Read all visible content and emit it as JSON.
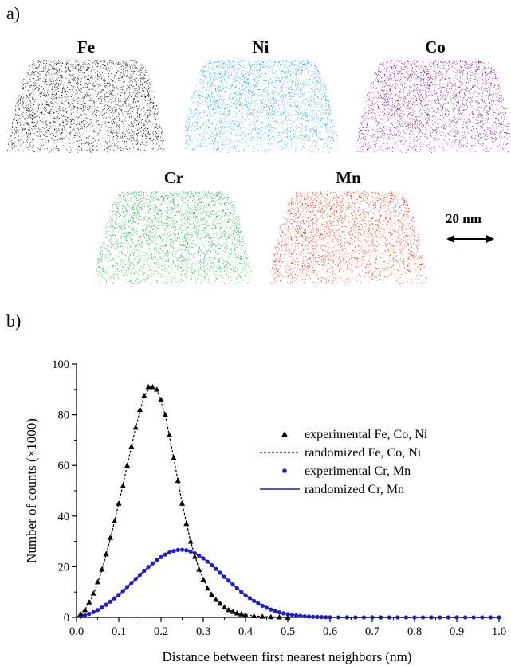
{
  "panel_a": {
    "label": "a)",
    "elements": [
      {
        "name": "Fe",
        "color": "#111111"
      },
      {
        "name": "Ni",
        "color": "#29a8e0"
      },
      {
        "name": "Co",
        "color": "#8e1a8e"
      },
      {
        "name": "Cr",
        "color": "#1fb14a"
      },
      {
        "name": "Mn",
        "color": "#e8401c"
      }
    ],
    "scale_bar": {
      "label": "20 nm"
    }
  },
  "panel_b": {
    "label": "b)"
  },
  "chart_data": {
    "type": "scatter",
    "xlabel": "Distance between first nearest neighbors (nm)",
    "ylabel": "Number of counts (×1000)",
    "xlim": [
      0,
      1.0
    ],
    "ylim": [
      0,
      100
    ],
    "xticks": [
      "0.0",
      "0.1",
      "0.2",
      "0.3",
      "0.4",
      "0.5",
      "0.6",
      "0.7",
      "0.8",
      "0.9",
      "1.0"
    ],
    "yticks": [
      "0",
      "20",
      "40",
      "60",
      "80",
      "100"
    ],
    "grid": false,
    "legend_position": "right",
    "series": [
      {
        "name": "experimental Fe, Co, Ni",
        "style": "triangle-markers",
        "color": "#000000",
        "points": [
          [
            0.01,
            1.5
          ],
          [
            0.02,
            3
          ],
          [
            0.03,
            6
          ],
          [
            0.04,
            9.5
          ],
          [
            0.05,
            14
          ],
          [
            0.06,
            19
          ],
          [
            0.07,
            25
          ],
          [
            0.08,
            31.5
          ],
          [
            0.09,
            38
          ],
          [
            0.1,
            45
          ],
          [
            0.11,
            52
          ],
          [
            0.12,
            60
          ],
          [
            0.13,
            67.5
          ],
          [
            0.14,
            75
          ],
          [
            0.15,
            82
          ],
          [
            0.16,
            87.5
          ],
          [
            0.17,
            91
          ],
          [
            0.18,
            91
          ],
          [
            0.19,
            90
          ],
          [
            0.2,
            86
          ],
          [
            0.21,
            80
          ],
          [
            0.22,
            72
          ],
          [
            0.23,
            63
          ],
          [
            0.24,
            54
          ],
          [
            0.25,
            45
          ],
          [
            0.26,
            37
          ],
          [
            0.27,
            30
          ],
          [
            0.28,
            24
          ],
          [
            0.29,
            19
          ],
          [
            0.3,
            15
          ],
          [
            0.31,
            11.5
          ],
          [
            0.32,
            9
          ],
          [
            0.33,
            7
          ],
          [
            0.34,
            5.5
          ],
          [
            0.35,
            4
          ],
          [
            0.36,
            3
          ],
          [
            0.37,
            2.3
          ],
          [
            0.38,
            1.7
          ],
          [
            0.39,
            1.3
          ],
          [
            0.4,
            1
          ],
          [
            0.42,
            0.6
          ],
          [
            0.44,
            0.4
          ],
          [
            0.46,
            0.2
          ],
          [
            0.48,
            0.1
          ],
          [
            0.5,
            0.05
          ]
        ]
      },
      {
        "name": "randomized Fe, Co, Ni",
        "style": "dashed-line",
        "color": "#000000",
        "points": [
          [
            0,
            0
          ],
          [
            0.02,
            3
          ],
          [
            0.04,
            9
          ],
          [
            0.06,
            18.5
          ],
          [
            0.08,
            31
          ],
          [
            0.1,
            45
          ],
          [
            0.12,
            60
          ],
          [
            0.14,
            75
          ],
          [
            0.16,
            87.5
          ],
          [
            0.175,
            91
          ],
          [
            0.19,
            90
          ],
          [
            0.21,
            80
          ],
          [
            0.23,
            63
          ],
          [
            0.25,
            45
          ],
          [
            0.27,
            30
          ],
          [
            0.29,
            19
          ],
          [
            0.31,
            11.5
          ],
          [
            0.33,
            7
          ],
          [
            0.35,
            4
          ],
          [
            0.37,
            2.3
          ],
          [
            0.39,
            1.3
          ],
          [
            0.42,
            0.6
          ],
          [
            0.46,
            0.2
          ],
          [
            0.5,
            0.05
          ],
          [
            0.55,
            0
          ],
          [
            1.0,
            0
          ]
        ]
      },
      {
        "name": "experimental Cr, Mn",
        "style": "circle-markers",
        "color": "#1a1ad0",
        "points": [
          [
            0.01,
            0.3
          ],
          [
            0.02,
            0.8
          ],
          [
            0.03,
            1.4
          ],
          [
            0.04,
            2.1
          ],
          [
            0.05,
            2.9
          ],
          [
            0.06,
            3.9
          ],
          [
            0.07,
            5
          ],
          [
            0.08,
            6.2
          ],
          [
            0.09,
            7.5
          ],
          [
            0.1,
            8.9
          ],
          [
            0.11,
            10.4
          ],
          [
            0.12,
            12
          ],
          [
            0.13,
            13.6
          ],
          [
            0.14,
            15.2
          ],
          [
            0.15,
            16.8
          ],
          [
            0.16,
            18.4
          ],
          [
            0.17,
            19.9
          ],
          [
            0.18,
            21.3
          ],
          [
            0.19,
            22.6
          ],
          [
            0.2,
            23.8
          ],
          [
            0.21,
            24.8
          ],
          [
            0.22,
            25.6
          ],
          [
            0.23,
            26.2
          ],
          [
            0.24,
            26.6
          ],
          [
            0.25,
            26.7
          ],
          [
            0.26,
            26.5
          ],
          [
            0.27,
            26
          ],
          [
            0.28,
            25.3
          ],
          [
            0.29,
            24.4
          ],
          [
            0.3,
            23.3
          ],
          [
            0.31,
            22
          ],
          [
            0.32,
            20.6
          ],
          [
            0.33,
            19.1
          ],
          [
            0.34,
            17.6
          ],
          [
            0.35,
            16
          ],
          [
            0.36,
            14.5
          ],
          [
            0.37,
            13
          ],
          [
            0.38,
            11.5
          ],
          [
            0.39,
            10.1
          ],
          [
            0.4,
            8.8
          ],
          [
            0.41,
            7.6
          ],
          [
            0.42,
            6.5
          ],
          [
            0.43,
            5.5
          ],
          [
            0.44,
            4.6
          ],
          [
            0.45,
            3.8
          ],
          [
            0.46,
            3.1
          ],
          [
            0.47,
            2.5
          ],
          [
            0.48,
            2
          ],
          [
            0.49,
            1.6
          ],
          [
            0.5,
            1.3
          ],
          [
            0.51,
            1
          ],
          [
            0.52,
            0.8
          ],
          [
            0.53,
            0.6
          ],
          [
            0.54,
            0.45
          ],
          [
            0.55,
            0.35
          ],
          [
            0.56,
            0.25
          ],
          [
            0.57,
            0.18
          ],
          [
            0.58,
            0.12
          ],
          [
            0.59,
            0.08
          ],
          [
            0.6,
            0.05
          ],
          [
            0.62,
            0.02
          ],
          [
            0.64,
            0.01
          ],
          [
            0.66,
            0
          ],
          [
            0.68,
            0
          ],
          [
            0.7,
            0
          ],
          [
            0.72,
            0
          ],
          [
            0.74,
            0
          ],
          [
            0.76,
            0
          ],
          [
            0.78,
            0
          ],
          [
            0.8,
            0
          ],
          [
            0.82,
            0
          ],
          [
            0.84,
            0
          ],
          [
            0.86,
            0
          ],
          [
            0.88,
            0
          ],
          [
            0.9,
            0
          ],
          [
            0.92,
            0
          ],
          [
            0.94,
            0
          ],
          [
            0.96,
            0
          ],
          [
            0.98,
            0
          ],
          [
            1.0,
            0
          ]
        ]
      },
      {
        "name": "randomized Cr, Mn",
        "style": "solid-line",
        "color": "#1a1ad0",
        "points": [
          [
            0,
            0
          ],
          [
            0.02,
            0.8
          ],
          [
            0.04,
            2.1
          ],
          [
            0.06,
            3.9
          ],
          [
            0.08,
            6.2
          ],
          [
            0.1,
            8.9
          ],
          [
            0.12,
            12
          ],
          [
            0.14,
            15.2
          ],
          [
            0.16,
            18.4
          ],
          [
            0.18,
            21.3
          ],
          [
            0.2,
            23.8
          ],
          [
            0.22,
            25.6
          ],
          [
            0.24,
            26.6
          ],
          [
            0.25,
            26.7
          ],
          [
            0.26,
            26.5
          ],
          [
            0.28,
            25.3
          ],
          [
            0.3,
            23.3
          ],
          [
            0.32,
            20.6
          ],
          [
            0.34,
            17.6
          ],
          [
            0.36,
            14.5
          ],
          [
            0.38,
            11.5
          ],
          [
            0.4,
            8.8
          ],
          [
            0.42,
            6.5
          ],
          [
            0.44,
            4.6
          ],
          [
            0.46,
            3.1
          ],
          [
            0.48,
            2
          ],
          [
            0.5,
            1.3
          ],
          [
            0.52,
            0.8
          ],
          [
            0.54,
            0.45
          ],
          [
            0.56,
            0.25
          ],
          [
            0.58,
            0.12
          ],
          [
            0.6,
            0.05
          ],
          [
            0.65,
            0
          ],
          [
            1.0,
            0
          ]
        ]
      }
    ]
  }
}
